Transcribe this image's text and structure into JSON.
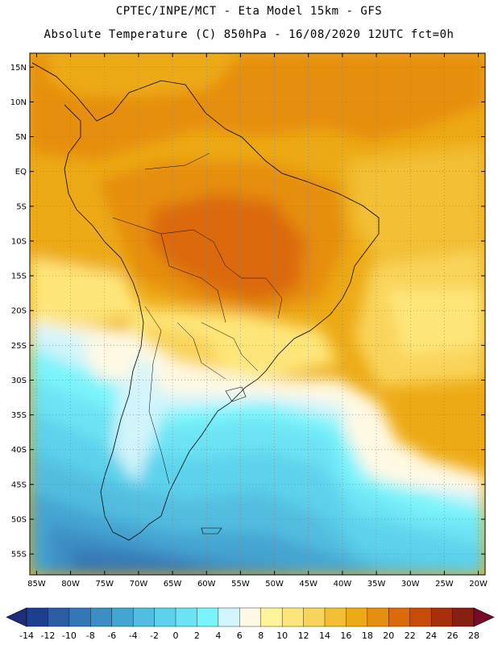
{
  "header": {
    "line1": "CPTEC/INPE/MCT -  Eta Model 15km - GFS",
    "line2": "Absolute Temperature (C) 850hPa - 16/08/2020 12UTC fct=0h"
  },
  "map": {
    "lon_range": [
      -86,
      -19
    ],
    "lat_range": [
      -58,
      17
    ],
    "lat_labels": [
      "15N",
      "10N",
      "5N",
      "EQ",
      "5S",
      "10S",
      "15S",
      "20S",
      "25S",
      "30S",
      "35S",
      "40S",
      "45S",
      "50S",
      "55S"
    ],
    "lat_values": [
      15,
      10,
      5,
      0,
      -5,
      -10,
      -15,
      -20,
      -25,
      -30,
      -35,
      -40,
      -45,
      -50,
      -55
    ],
    "lon_labels": [
      "85W",
      "80W",
      "75W",
      "70W",
      "65W",
      "60W",
      "55W",
      "50W",
      "45W",
      "40W",
      "35W",
      "30W",
      "25W",
      "20W"
    ],
    "lon_values": [
      -85,
      -80,
      -75,
      -70,
      -65,
      -60,
      -55,
      -50,
      -45,
      -40,
      -35,
      -30,
      -25,
      -20
    ],
    "grid": true
  },
  "colorbar": {
    "labels": [
      "-14",
      "-12",
      "-10",
      "-8",
      "-6",
      "-4",
      "-2",
      "0",
      "2",
      "4",
      "6",
      "8",
      "10",
      "12",
      "14",
      "16",
      "18",
      "20",
      "22",
      "24",
      "26",
      "28"
    ],
    "colors": [
      "#1c3f8f",
      "#2b5ea5",
      "#3477b6",
      "#3d8ec5",
      "#45a5d2",
      "#52bde0",
      "#5cd2ec",
      "#6ce3f4",
      "#7af4fb",
      "#d2f4fb",
      "#fff9e3",
      "#fff49a",
      "#fee67a",
      "#f9d45a",
      "#f2bf34",
      "#edaa15",
      "#e68e0f",
      "#dc6a0b",
      "#c84b08",
      "#a7300a",
      "#862012"
    ],
    "under_color": "#1c2d7a",
    "over_color": "#7a0a2a"
  }
}
